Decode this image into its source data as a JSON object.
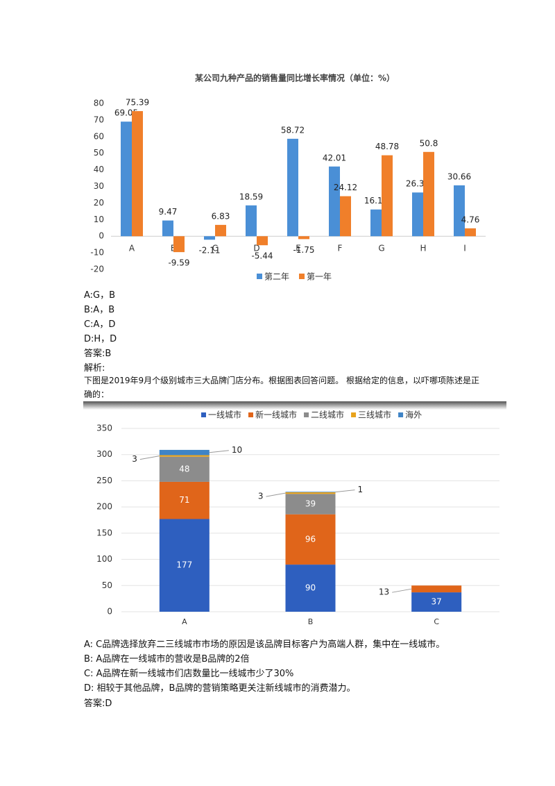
{
  "chart_data": [
    {
      "type": "bar",
      "title": "某公司九种产品的销售量同比增长率情况（单位：%）",
      "categories": [
        "A",
        "B",
        "C",
        "D",
        "E",
        "F",
        "G",
        "H",
        "I"
      ],
      "series": [
        {
          "name": "第二年",
          "color": "#4a8fd6",
          "values": [
            69.05,
            9.47,
            -2.11,
            18.59,
            58.72,
            42.01,
            16.11,
            26.35,
            30.66
          ]
        },
        {
          "name": "第一年",
          "color": "#f07f2a",
          "values": [
            75.39,
            -9.59,
            6.83,
            -5.44,
            -1.75,
            24.12,
            48.78,
            50.8,
            4.76
          ]
        }
      ],
      "ylim": [
        -20,
        80
      ],
      "yticks": [
        -20,
        -10,
        0,
        10,
        20,
        30,
        40,
        50,
        60,
        70,
        80
      ],
      "grid": false,
      "legend": "bottom"
    },
    {
      "type": "stacked-bar",
      "categories": [
        "A",
        "B",
        "C"
      ],
      "series": [
        {
          "name": "一线城市",
          "color": "#2e5fbf",
          "values": [
            177,
            90,
            37
          ]
        },
        {
          "name": "新一线城市",
          "color": "#e0651a",
          "values": [
            71,
            96,
            13
          ]
        },
        {
          "name": "二线城市",
          "color": "#8c8c8c",
          "values": [
            48,
            39,
            null
          ]
        },
        {
          "name": "三线城市",
          "color": "#e8a31c",
          "values": [
            3,
            3,
            null
          ]
        },
        {
          "name": "海外",
          "color": "#3f84c6",
          "values": [
            10,
            1,
            null
          ]
        }
      ],
      "ylim": [
        0,
        350
      ],
      "yticks": [
        0,
        50,
        100,
        150,
        200,
        250,
        300,
        350
      ],
      "grid": true,
      "legend": "top"
    }
  ],
  "document": {
    "options1": [
      "A:G，B",
      "B:A，B",
      "C:A，D",
      "D:H，D"
    ],
    "answer1": "答案:B",
    "analysis": "解析:",
    "question": "下图是2019年9月个级别城市三大品牌门店分布。根据图表回答问题。 根据给定的信息，以吓哪项陈述是正确的：",
    "options2": [
      "A: C品牌选择放弃二三线城市市场的原因是该品牌目标客户为高端人群，集中在一线城市。",
      "B: A品牌在一线城市的营收是B品牌的2倍",
      "C: A品牌在新一线城市们店数量比一线城市少了30%",
      "D: 相较于其他品牌，B品牌的营销策略更关注新线城市的消费潜力。"
    ],
    "answer2": "答案:D"
  }
}
